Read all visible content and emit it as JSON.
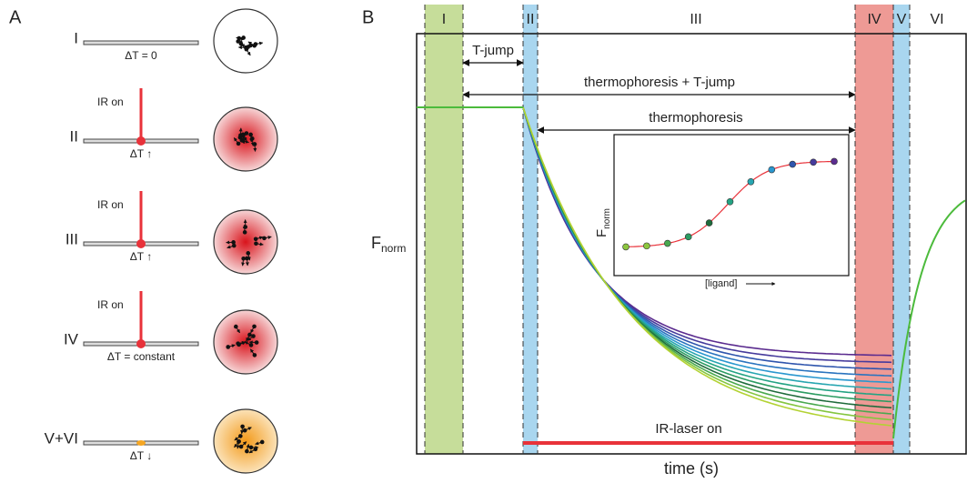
{
  "panel_a": {
    "label": "A",
    "rows": [
      {
        "label": "I",
        "temperature": "ΔT = 0"
      },
      {
        "label": "II",
        "laser": "IR on",
        "temperature": "ΔT ↑"
      },
      {
        "label": "III",
        "laser": "IR on",
        "temperature": "ΔT ↑"
      },
      {
        "label": "IV",
        "laser": "IR on",
        "temperature": "ΔT = constant"
      },
      {
        "label": "V+VI",
        "temperature": "ΔT ↓"
      }
    ]
  },
  "panel_b": {
    "label": "B",
    "phases": [
      "I",
      "II",
      "III",
      "IV",
      "V",
      "VI"
    ],
    "annotations": {
      "t_jump": "T-jump",
      "thermo_tjump": "thermophoresis + T-jump",
      "thermophoresis": "thermophoresis",
      "laser": "IR-laser on"
    },
    "y_label": {
      "text": "F",
      "subscript": "norm"
    },
    "x_label": "time (s)",
    "inset": {
      "y_label": {
        "text": "F",
        "subscript": "norm"
      },
      "x_label": "[ligand]"
    }
  }
}
